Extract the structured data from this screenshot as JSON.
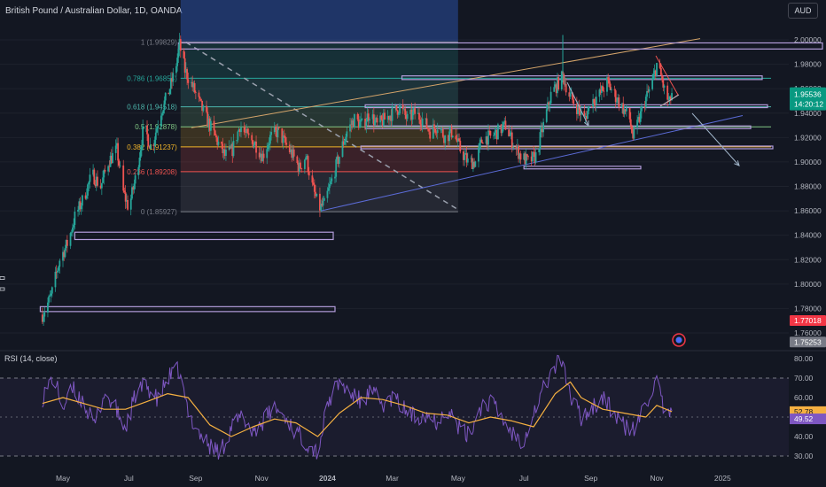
{
  "header": {
    "symbol_title": "British Pound / Australian Dollar, 1D, OANDA",
    "currency_button": "AUD"
  },
  "colors": {
    "background": "#131722",
    "candle_up": "#26a69a",
    "candle_down": "#ef5350",
    "rsi_line": "#7e57c2",
    "rsi_ma": "#f5b041",
    "price_badge": "#089981",
    "red_badge": "#f23645",
    "zone_border": "#b39ddb",
    "channel_line": "#5b6bd6",
    "top_trendline": "#d4a46a"
  },
  "chart_data": [
    {
      "type": "candlestick",
      "title": "British Pound / Australian Dollar, 1D, OANDA",
      "ylim": [
        1.74,
        2.01
      ],
      "y_ticks": [
        "2.00000",
        "1.98000",
        "1.96000",
        "1.94000",
        "1.92000",
        "1.90000",
        "1.88000",
        "1.86000",
        "1.84000",
        "1.82000",
        "1.80000",
        "1.78000",
        "1.76000"
      ],
      "x_ticks": [
        "May",
        "Jul",
        "Sep",
        "Nov",
        "2024",
        "Mar",
        "May",
        "Jul",
        "Sep",
        "Nov",
        "2025"
      ],
      "close_path": [
        [
          "2023-04-12",
          1.775
        ],
        [
          "2023-04-20",
          1.79
        ],
        [
          "2023-04-28",
          1.82
        ],
        [
          "2023-05-06",
          1.835
        ],
        [
          "2023-05-12",
          1.855
        ],
        [
          "2023-05-20",
          1.87
        ],
        [
          "2023-05-28",
          1.89
        ],
        [
          "2023-06-05",
          1.88
        ],
        [
          "2023-06-12",
          1.9
        ],
        [
          "2023-06-20",
          1.91
        ],
        [
          "2023-06-26",
          1.875
        ],
        [
          "2023-07-01",
          1.862
        ],
        [
          "2023-07-08",
          1.89
        ],
        [
          "2023-07-15",
          1.93
        ],
        [
          "2023-07-22",
          1.91
        ],
        [
          "2023-07-30",
          1.94
        ],
        [
          "2023-08-06",
          1.955
        ],
        [
          "2023-08-13",
          1.975
        ],
        [
          "2023-08-17",
          1.996
        ],
        [
          "2023-08-22",
          1.975
        ],
        [
          "2023-08-30",
          1.96
        ],
        [
          "2023-09-06",
          1.945
        ],
        [
          "2023-09-14",
          1.93
        ],
        [
          "2023-09-22",
          1.915
        ],
        [
          "2023-09-28",
          1.905
        ],
        [
          "2023-10-05",
          1.91
        ],
        [
          "2023-10-12",
          1.93
        ],
        [
          "2023-10-19",
          1.92
        ],
        [
          "2023-10-26",
          1.915
        ],
        [
          "2023-11-02",
          1.905
        ],
        [
          "2023-11-09",
          1.92
        ],
        [
          "2023-11-16",
          1.925
        ],
        [
          "2023-11-23",
          1.915
        ],
        [
          "2023-11-30",
          1.905
        ],
        [
          "2023-12-06",
          1.895
        ],
        [
          "2023-12-12",
          1.905
        ],
        [
          "2023-12-18",
          1.88
        ],
        [
          "2023-12-24",
          1.862
        ],
        [
          "2023-12-29",
          1.865
        ],
        [
          "2024-01-05",
          1.885
        ],
        [
          "2024-01-12",
          1.905
        ],
        [
          "2024-01-19",
          1.925
        ],
        [
          "2024-01-26",
          1.935
        ],
        [
          "2024-02-02",
          1.93
        ],
        [
          "2024-02-09",
          1.94
        ],
        [
          "2024-02-16",
          1.93
        ],
        [
          "2024-02-23",
          1.935
        ],
        [
          "2024-03-01",
          1.94
        ],
        [
          "2024-03-08",
          1.945
        ],
        [
          "2024-03-15",
          1.935
        ],
        [
          "2024-03-22",
          1.94
        ],
        [
          "2024-03-29",
          1.935
        ],
        [
          "2024-04-05",
          1.925
        ],
        [
          "2024-04-12",
          1.93
        ],
        [
          "2024-04-19",
          1.92
        ],
        [
          "2024-04-26",
          1.925
        ],
        [
          "2024-05-03",
          1.91
        ],
        [
          "2024-05-10",
          1.9
        ],
        [
          "2024-05-17",
          1.9
        ],
        [
          "2024-05-24",
          1.92
        ],
        [
          "2024-05-31",
          1.92
        ],
        [
          "2024-06-07",
          1.925
        ],
        [
          "2024-06-14",
          1.93
        ],
        [
          "2024-06-21",
          1.915
        ],
        [
          "2024-06-28",
          1.905
        ],
        [
          "2024-07-05",
          1.9
        ],
        [
          "2024-07-12",
          1.905
        ],
        [
          "2024-07-19",
          1.93
        ],
        [
          "2024-07-26",
          1.955
        ],
        [
          "2024-08-02",
          1.965
        ],
        [
          "2024-08-06",
          1.97
        ],
        [
          "2024-08-12",
          1.955
        ],
        [
          "2024-08-19",
          1.945
        ],
        [
          "2024-08-26",
          1.935
        ],
        [
          "2024-09-02",
          1.95
        ],
        [
          "2024-09-09",
          1.955
        ],
        [
          "2024-09-16",
          1.965
        ],
        [
          "2024-09-23",
          1.955
        ],
        [
          "2024-09-30",
          1.945
        ],
        [
          "2024-10-07",
          1.935
        ],
        [
          "2024-10-10",
          1.92
        ],
        [
          "2024-10-14",
          1.93
        ],
        [
          "2024-10-21",
          1.95
        ],
        [
          "2024-10-28",
          1.965
        ],
        [
          "2024-11-01",
          1.98
        ],
        [
          "2024-11-05",
          1.97
        ],
        [
          "2024-11-09",
          1.955
        ],
        [
          "2024-11-13",
          1.948
        ],
        [
          "2024-11-15",
          1.956
        ]
      ],
      "fibonacci": [
        {
          "label": "1 (1.99829)",
          "value": 1.99829,
          "color": "#787b86"
        },
        {
          "label": "0.786 (1.96854)",
          "value": 1.96854,
          "color": "#26a69a"
        },
        {
          "label": "0.618 (1.94518)",
          "value": 1.94518,
          "color": "#4db6ac"
        },
        {
          "label": "0.5 (1.92878)",
          "value": 1.92878,
          "color": "#81c784"
        },
        {
          "label": "0.382 (1.91237)",
          "value": 1.91237,
          "color": "#f0b429"
        },
        {
          "label": "0.236 (1.89208)",
          "value": 1.89208,
          "color": "#ef5350"
        },
        {
          "label": "0 (1.85927)",
          "value": 1.85927,
          "color": "#787b86"
        }
      ],
      "price_labels": {
        "current": "1.95536",
        "countdown": "14:20:12",
        "red_level": "1.77018",
        "grey_level": "1.75253"
      }
    },
    {
      "type": "line",
      "title": "RSI (14, close)",
      "ylim": [
        25,
        85
      ],
      "y_ticks": [
        "80.00",
        "70.00",
        "60.00",
        "50.00",
        "40.00",
        "30.00"
      ],
      "bands": [
        70,
        30
      ],
      "value_labels": [
        "52.78",
        "49.52"
      ],
      "rsi_path": [
        [
          "2023-04-12",
          60
        ],
        [
          "2023-04-22",
          71
        ],
        [
          "2023-05-01",
          55
        ],
        [
          "2023-05-10",
          64
        ],
        [
          "2023-05-20",
          58
        ],
        [
          "2023-05-30",
          45
        ],
        [
          "2023-06-08",
          62
        ],
        [
          "2023-06-18",
          55
        ],
        [
          "2023-06-28",
          44
        ],
        [
          "2023-07-08",
          63
        ],
        [
          "2023-07-18",
          66
        ],
        [
          "2023-07-28",
          58
        ],
        [
          "2023-08-06",
          70
        ],
        [
          "2023-08-16",
          74
        ],
        [
          "2023-08-25",
          52
        ],
        [
          "2023-09-04",
          42
        ],
        [
          "2023-09-14",
          35
        ],
        [
          "2023-09-24",
          32
        ],
        [
          "2023-10-04",
          45
        ],
        [
          "2023-10-14",
          50
        ],
        [
          "2023-10-24",
          43
        ],
        [
          "2023-11-03",
          48
        ],
        [
          "2023-11-13",
          55
        ],
        [
          "2023-11-23",
          50
        ],
        [
          "2023-12-03",
          42
        ],
        [
          "2023-12-13",
          37
        ],
        [
          "2023-12-23",
          32
        ],
        [
          "2024-01-02",
          58
        ],
        [
          "2024-01-12",
          68
        ],
        [
          "2024-01-22",
          62
        ],
        [
          "2024-02-01",
          58
        ],
        [
          "2024-02-11",
          63
        ],
        [
          "2024-02-21",
          56
        ],
        [
          "2024-03-02",
          60
        ],
        [
          "2024-03-12",
          54
        ],
        [
          "2024-03-22",
          50
        ],
        [
          "2024-04-01",
          52
        ],
        [
          "2024-04-11",
          48
        ],
        [
          "2024-04-21",
          55
        ],
        [
          "2024-05-01",
          45
        ],
        [
          "2024-05-11",
          40
        ],
        [
          "2024-05-21",
          55
        ],
        [
          "2024-05-31",
          58
        ],
        [
          "2024-06-10",
          50
        ],
        [
          "2024-06-20",
          42
        ],
        [
          "2024-06-30",
          38
        ],
        [
          "2024-07-10",
          52
        ],
        [
          "2024-07-20",
          66
        ],
        [
          "2024-07-30",
          76
        ],
        [
          "2024-08-06",
          80
        ],
        [
          "2024-08-13",
          60
        ],
        [
          "2024-08-23",
          50
        ],
        [
          "2024-09-02",
          55
        ],
        [
          "2024-09-12",
          60
        ],
        [
          "2024-09-22",
          52
        ],
        [
          "2024-10-02",
          45
        ],
        [
          "2024-10-12",
          43
        ],
        [
          "2024-10-22",
          58
        ],
        [
          "2024-11-01",
          68
        ],
        [
          "2024-11-08",
          52
        ],
        [
          "2024-11-15",
          49.52
        ]
      ],
      "rsi_ma_path": [
        [
          "2023-04-12",
          57
        ],
        [
          "2023-05-01",
          60
        ],
        [
          "2023-05-20",
          57
        ],
        [
          "2023-06-08",
          54
        ],
        [
          "2023-06-28",
          54
        ],
        [
          "2023-07-18",
          58
        ],
        [
          "2023-08-06",
          62
        ],
        [
          "2023-08-25",
          60
        ],
        [
          "2023-09-14",
          46
        ],
        [
          "2023-10-04",
          40
        ],
        [
          "2023-10-24",
          45
        ],
        [
          "2023-11-13",
          49
        ],
        [
          "2023-12-03",
          47
        ],
        [
          "2023-12-23",
          40
        ],
        [
          "2024-01-12",
          52
        ],
        [
          "2024-02-01",
          60
        ],
        [
          "2024-02-21",
          59
        ],
        [
          "2024-03-12",
          56
        ],
        [
          "2024-04-01",
          52
        ],
        [
          "2024-04-21",
          51
        ],
        [
          "2024-05-11",
          47
        ],
        [
          "2024-05-31",
          50
        ],
        [
          "2024-06-20",
          48
        ],
        [
          "2024-07-10",
          45
        ],
        [
          "2024-07-30",
          62
        ],
        [
          "2024-08-13",
          68
        ],
        [
          "2024-08-23",
          60
        ],
        [
          "2024-09-12",
          54
        ],
        [
          "2024-10-02",
          52
        ],
        [
          "2024-10-22",
          50
        ],
        [
          "2024-11-01",
          56
        ],
        [
          "2024-11-15",
          52.78
        ]
      ]
    }
  ]
}
